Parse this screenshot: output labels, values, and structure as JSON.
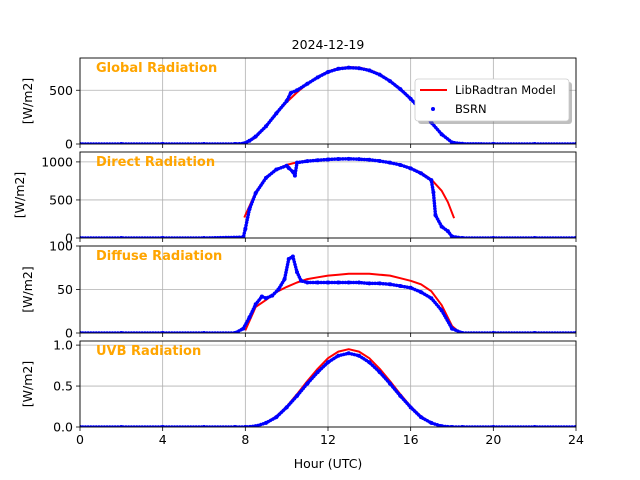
{
  "figure": {
    "title": "2024-12-19"
  },
  "chart_data": [
    {
      "type": "line",
      "panel_title": "Global Radiation",
      "title_color": "#ffa500",
      "ylabel": "[W/m2]",
      "xlabel": "Hour (UTC)",
      "xlim": [
        0,
        24
      ],
      "ylim": [
        0,
        800
      ],
      "yticks": [
        0,
        500
      ],
      "xticks": [
        0,
        4,
        8,
        12,
        16,
        20,
        24
      ],
      "grid": true,
      "legend": {
        "placement": "right",
        "entries": [
          {
            "name": "LibRadtran Model",
            "color": "#ff0000",
            "marker": "line"
          },
          {
            "name": "BSRN",
            "color": "#0000ff",
            "marker": "dot"
          }
        ]
      },
      "series": [
        {
          "name": "LibRadtran Model",
          "color": "#ff0000",
          "style": "line",
          "x": [
            8,
            8.5,
            9,
            9.5,
            10,
            10.5,
            11,
            11.5,
            12,
            12.5,
            13,
            13.5,
            14,
            14.5,
            15,
            15.5,
            16,
            16.5,
            17,
            17.5,
            18,
            18.2
          ],
          "y": [
            5,
            60,
            165,
            280,
            390,
            480,
            560,
            625,
            675,
            705,
            715,
            712,
            690,
            650,
            590,
            515,
            425,
            320,
            205,
            95,
            15,
            3
          ]
        },
        {
          "name": "BSRN",
          "color": "#0000ff",
          "style": "dots",
          "x": [
            0,
            2,
            4,
            6,
            7.5,
            7.9,
            8.2,
            8.5,
            9,
            9.5,
            10,
            10.2,
            10.5,
            11,
            11.5,
            12,
            12.5,
            13,
            13.5,
            14,
            14.5,
            15,
            15.5,
            16,
            16.5,
            17,
            17.5,
            18,
            18.5,
            20,
            22,
            24
          ],
          "y": [
            0,
            0,
            0,
            0,
            0,
            4,
            30,
            70,
            165,
            285,
            400,
            475,
            500,
            560,
            620,
            670,
            700,
            710,
            705,
            685,
            645,
            585,
            510,
            420,
            315,
            200,
            90,
            15,
            2,
            0,
            0,
            0
          ]
        }
      ]
    },
    {
      "type": "line",
      "panel_title": "Direct Radiation",
      "title_color": "#ffa500",
      "ylabel": "[W/m2]",
      "xlim": [
        0,
        24
      ],
      "ylim": [
        0,
        1130
      ],
      "yticks": [
        0,
        500,
        1000
      ],
      "grid": true,
      "series": [
        {
          "name": "LibRadtran Model",
          "color": "#ff0000",
          "style": "line",
          "x": [
            7.95,
            8.2,
            8.5,
            9,
            9.5,
            10,
            10.5,
            11,
            11.5,
            12,
            12.5,
            13,
            13.5,
            14,
            14.5,
            15,
            15.5,
            16,
            16.5,
            17,
            17.5,
            17.8,
            18.1
          ],
          "y": [
            270,
            420,
            600,
            800,
            900,
            960,
            995,
            1015,
            1025,
            1035,
            1040,
            1040,
            1038,
            1030,
            1015,
            995,
            965,
            920,
            860,
            770,
            620,
            470,
            260
          ]
        },
        {
          "name": "BSRN",
          "color": "#0000ff",
          "style": "dots",
          "x": [
            0,
            2,
            4,
            6,
            7.9,
            8.0,
            8.2,
            8.5,
            9,
            9.5,
            10,
            10.1,
            10.3,
            10.4,
            10.5,
            11,
            11.5,
            12,
            12.5,
            13,
            13.5,
            14,
            14.5,
            15,
            15.5,
            16,
            16.5,
            17,
            17.1,
            17.2,
            17.5,
            17.8,
            18.0,
            18.5,
            20,
            22,
            24
          ],
          "y": [
            0,
            0,
            0,
            0,
            10,
            120,
            380,
            590,
            790,
            900,
            950,
            920,
            870,
            820,
            990,
            1010,
            1022,
            1032,
            1038,
            1040,
            1036,
            1028,
            1012,
            990,
            960,
            915,
            850,
            760,
            600,
            300,
            150,
            90,
            20,
            0,
            0,
            0,
            0
          ]
        }
      ]
    },
    {
      "type": "line",
      "panel_title": "Diffuse Radiation",
      "title_color": "#ffa500",
      "ylabel": "[W/m2]",
      "xlim": [
        0,
        24
      ],
      "ylim": [
        0,
        100
      ],
      "yticks": [
        0,
        50,
        100
      ],
      "grid": true,
      "series": [
        {
          "name": "LibRadtran Model",
          "color": "#ff0000",
          "style": "line",
          "x": [
            8,
            8.5,
            9,
            9.5,
            10,
            10.5,
            11,
            11.5,
            12,
            12.5,
            13,
            13.5,
            14,
            14.5,
            15,
            15.5,
            16,
            16.5,
            17,
            17.5,
            18,
            18.3
          ],
          "y": [
            3,
            30,
            38,
            47,
            53,
            58,
            62,
            64,
            66,
            67,
            68,
            68,
            68,
            67,
            66,
            63,
            60,
            56,
            48,
            32,
            8,
            2
          ]
        },
        {
          "name": "BSRN",
          "color": "#0000ff",
          "style": "dots",
          "x": [
            0,
            2,
            4,
            6,
            7.5,
            7.9,
            8.2,
            8.5,
            8.8,
            9,
            9.3,
            9.6,
            9.9,
            10.1,
            10.3,
            10.5,
            10.7,
            11,
            11.5,
            12,
            12.5,
            13,
            13.5,
            14,
            14.5,
            15,
            15.5,
            16,
            16.5,
            17,
            17.5,
            18,
            18.5,
            20,
            22,
            24
          ],
          "y": [
            0,
            0,
            0,
            0,
            0,
            5,
            18,
            33,
            42,
            40,
            43,
            50,
            62,
            85,
            88,
            70,
            60,
            58,
            58,
            58,
            58,
            58,
            58,
            57,
            57,
            56,
            54,
            52,
            47,
            40,
            26,
            5,
            0,
            0,
            0,
            0
          ]
        }
      ]
    },
    {
      "type": "line",
      "panel_title": "UVB Radiation",
      "title_color": "#ffa500",
      "ylabel": "[W/m2]",
      "xlim": [
        0,
        24
      ],
      "ylim": [
        0,
        1.05
      ],
      "yticks": [
        0.0,
        0.5,
        1.0
      ],
      "grid": true,
      "series": [
        {
          "name": "LibRadtran Model",
          "color": "#ff0000",
          "style": "line",
          "x": [
            8,
            8.5,
            9,
            9.5,
            10,
            10.5,
            11,
            11.5,
            12,
            12.5,
            13,
            13.5,
            14,
            14.5,
            15,
            15.5,
            16,
            16.5,
            17,
            17.5,
            18,
            18.5
          ],
          "y": [
            0.0,
            0.01,
            0.05,
            0.13,
            0.25,
            0.4,
            0.56,
            0.71,
            0.84,
            0.92,
            0.95,
            0.92,
            0.84,
            0.71,
            0.56,
            0.4,
            0.25,
            0.13,
            0.05,
            0.01,
            0.0,
            0.0
          ]
        },
        {
          "name": "BSRN",
          "color": "#0000ff",
          "style": "dots",
          "x": [
            0,
            2,
            4,
            6,
            7.5,
            8,
            8.5,
            9,
            9.5,
            10,
            10.5,
            11,
            11.5,
            12,
            12.5,
            13,
            13.5,
            14,
            14.5,
            15,
            15.5,
            16,
            16.5,
            17,
            17.5,
            18,
            18.5,
            20,
            22,
            24
          ],
          "y": [
            0,
            0,
            0,
            0,
            0,
            0.0,
            0.01,
            0.05,
            0.12,
            0.24,
            0.38,
            0.53,
            0.67,
            0.79,
            0.87,
            0.9,
            0.87,
            0.79,
            0.67,
            0.53,
            0.38,
            0.24,
            0.12,
            0.05,
            0.01,
            0.0,
            0.0,
            0,
            0,
            0
          ]
        }
      ]
    }
  ]
}
